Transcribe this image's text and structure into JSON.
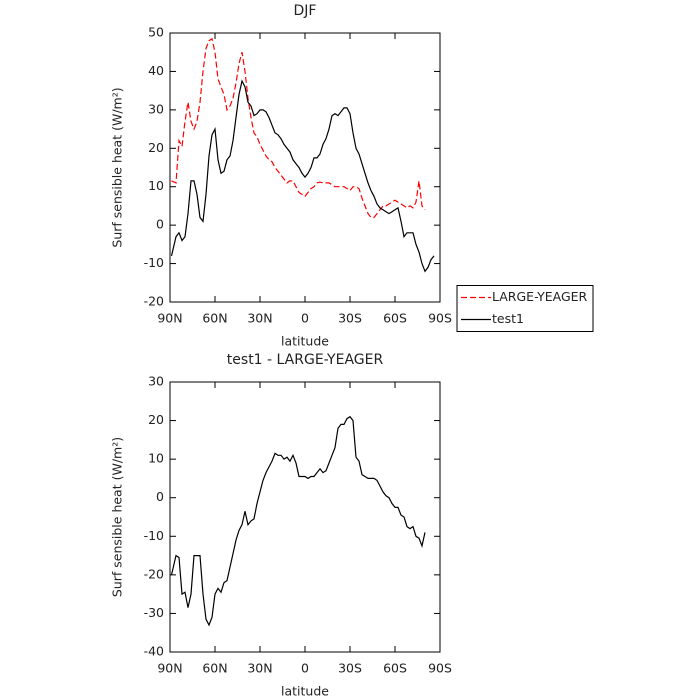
{
  "chart_data": [
    {
      "type": "line",
      "title": "DJF",
      "xlabel": "latitude",
      "ylabel": "Surf sensible heat (W/m²)",
      "x": [
        89,
        86,
        84,
        82,
        80,
        78,
        76,
        74,
        72,
        70,
        68,
        66,
        64,
        62,
        60,
        58,
        56,
        54,
        52,
        50,
        48,
        46,
        44,
        42,
        40,
        38,
        36,
        34,
        32,
        30,
        28,
        26,
        24,
        22,
        20,
        18,
        16,
        14,
        12,
        10,
        8,
        6,
        4,
        2,
        0,
        -2,
        -4,
        -6,
        -8,
        -10,
        -12,
        -14,
        -16,
        -18,
        -20,
        -22,
        -24,
        -26,
        -28,
        -30,
        -32,
        -34,
        -36,
        -38,
        -40,
        -42,
        -44,
        -46,
        -48,
        -50,
        -52,
        -54,
        -56,
        -58,
        -60,
        -62,
        -64,
        -66,
        -68,
        -70,
        -72,
        -74,
        -76,
        -78,
        -80,
        -82,
        -84,
        -86
      ],
      "xlim": [
        90,
        -90
      ],
      "xticks": [
        {
          "value": 90,
          "label": "90N"
        },
        {
          "value": 60,
          "label": "60N"
        },
        {
          "value": 30,
          "label": "30N"
        },
        0,
        {
          "value": -30,
          "label": "30S"
        },
        {
          "value": -60,
          "label": "60S"
        },
        {
          "value": -90,
          "label": "90S"
        }
      ],
      "ylim": [
        -20,
        50
      ],
      "yticks": [
        -20,
        -10,
        0,
        10,
        20,
        30,
        40,
        50
      ],
      "legend": "outside-right",
      "series": [
        {
          "name": "LARGE-YEAGER",
          "color": "#ff0000",
          "dash": true,
          "values": [
            11.5,
            11,
            22,
            20.5,
            27,
            32,
            27,
            25,
            27,
            32,
            40,
            46,
            48,
            48.5,
            45,
            38,
            36,
            34,
            30,
            31,
            33,
            37,
            42,
            45,
            40,
            33,
            28,
            24,
            23,
            21,
            19.5,
            18,
            17,
            16.5,
            15,
            14,
            13,
            12,
            11,
            11.5,
            11.5,
            10,
            8.5,
            8,
            7.5,
            8.5,
            9.5,
            10,
            11,
            11.2,
            11,
            11,
            11,
            10.5,
            10,
            10,
            10,
            10,
            9.5,
            9,
            10,
            10,
            9.5,
            7,
            5,
            3,
            2,
            2,
            3,
            4,
            5,
            5,
            5.5,
            6,
            6.5,
            6,
            5.5,
            5,
            4.5,
            5,
            4.5,
            6,
            11.5,
            5,
            4,
            null,
            null,
            null
          ]
        },
        {
          "name": "test1",
          "color": "#000000",
          "dash": false,
          "values": [
            -8,
            -3,
            -2,
            -4,
            -3,
            3,
            11.5,
            11.5,
            8,
            2,
            1,
            8,
            18,
            23.5,
            25,
            17,
            13.5,
            14,
            17,
            18,
            22,
            28,
            34,
            37.5,
            36,
            32,
            31,
            28.5,
            29,
            30,
            30,
            29.5,
            28,
            26,
            24,
            23.5,
            22.5,
            21,
            20,
            19,
            17,
            16,
            15,
            13.5,
            12.5,
            13.5,
            15,
            17.5,
            17.5,
            18.5,
            21,
            22.5,
            25,
            28.5,
            29,
            28.5,
            29.5,
            30.5,
            30.5,
            29,
            24,
            20,
            18.5,
            16,
            13.5,
            11,
            9,
            7.5,
            5.5,
            4.5,
            4,
            3.5,
            3,
            3.5,
            4,
            4.5,
            1,
            -3,
            -2,
            -2,
            -2,
            -5,
            -7,
            -10,
            -12,
            -11,
            -9,
            -8
          ]
        }
      ]
    },
    {
      "type": "line",
      "title": "test1 - LARGE-YEAGER",
      "xlabel": "latitude",
      "ylabel": "Surf sensible heat (W/m²)",
      "x": [
        89,
        86,
        84,
        82,
        80,
        78,
        76,
        74,
        72,
        70,
        68,
        66,
        64,
        62,
        60,
        58,
        56,
        54,
        52,
        50,
        48,
        46,
        44,
        42,
        40,
        38,
        36,
        34,
        32,
        30,
        28,
        26,
        24,
        22,
        20,
        18,
        16,
        14,
        12,
        10,
        8,
        6,
        4,
        2,
        0,
        -2,
        -4,
        -6,
        -8,
        -10,
        -12,
        -14,
        -16,
        -18,
        -20,
        -22,
        -24,
        -26,
        -28,
        -30,
        -32,
        -34,
        -36,
        -38,
        -40,
        -42,
        -44,
        -46,
        -48,
        -50,
        -52,
        -54,
        -56,
        -58,
        -60,
        -62,
        -64,
        -66,
        -68,
        -70,
        -72,
        -74,
        -76,
        -78,
        -80,
        -82,
        -84,
        -86
      ],
      "xlim": [
        90,
        -90
      ],
      "xticks": [
        {
          "value": 90,
          "label": "90N"
        },
        {
          "value": 60,
          "label": "60N"
        },
        {
          "value": 30,
          "label": "30N"
        },
        0,
        {
          "value": -30,
          "label": "30S"
        },
        {
          "value": -60,
          "label": "60S"
        },
        {
          "value": -90,
          "label": "90S"
        }
      ],
      "ylim": [
        -40,
        30
      ],
      "yticks": [
        -40,
        -30,
        -20,
        -10,
        0,
        10,
        20,
        30
      ],
      "series": [
        {
          "color": "#000000",
          "dash": false,
          "values": [
            -20,
            -15,
            -15.5,
            -25,
            -24.5,
            -28.5,
            -25,
            -15,
            -15,
            -15,
            -25,
            -31.5,
            -33,
            -31,
            -25,
            -23.5,
            -24.5,
            -22,
            -21.5,
            -18,
            -14.5,
            -11,
            -8.5,
            -7,
            -3.5,
            -7,
            -6,
            -5.5,
            -1.5,
            1.5,
            4.5,
            6.5,
            8,
            9.5,
            11.5,
            11,
            11,
            10,
            10.5,
            9.5,
            11,
            9,
            5.5,
            5.5,
            5.5,
            5,
            5.5,
            5.5,
            6.5,
            7.5,
            6.5,
            7,
            9,
            11,
            13,
            18,
            19,
            19,
            20.5,
            21,
            20,
            10.5,
            9.5,
            6,
            5.5,
            5,
            5,
            5,
            4.5,
            3,
            1.5,
            0.5,
            0,
            -1.5,
            -2.5,
            -2.5,
            -4.5,
            -5,
            -7.5,
            -8,
            -7.5,
            -10,
            -10.5,
            -12.5,
            -9,
            null,
            null,
            null
          ]
        }
      ]
    }
  ]
}
